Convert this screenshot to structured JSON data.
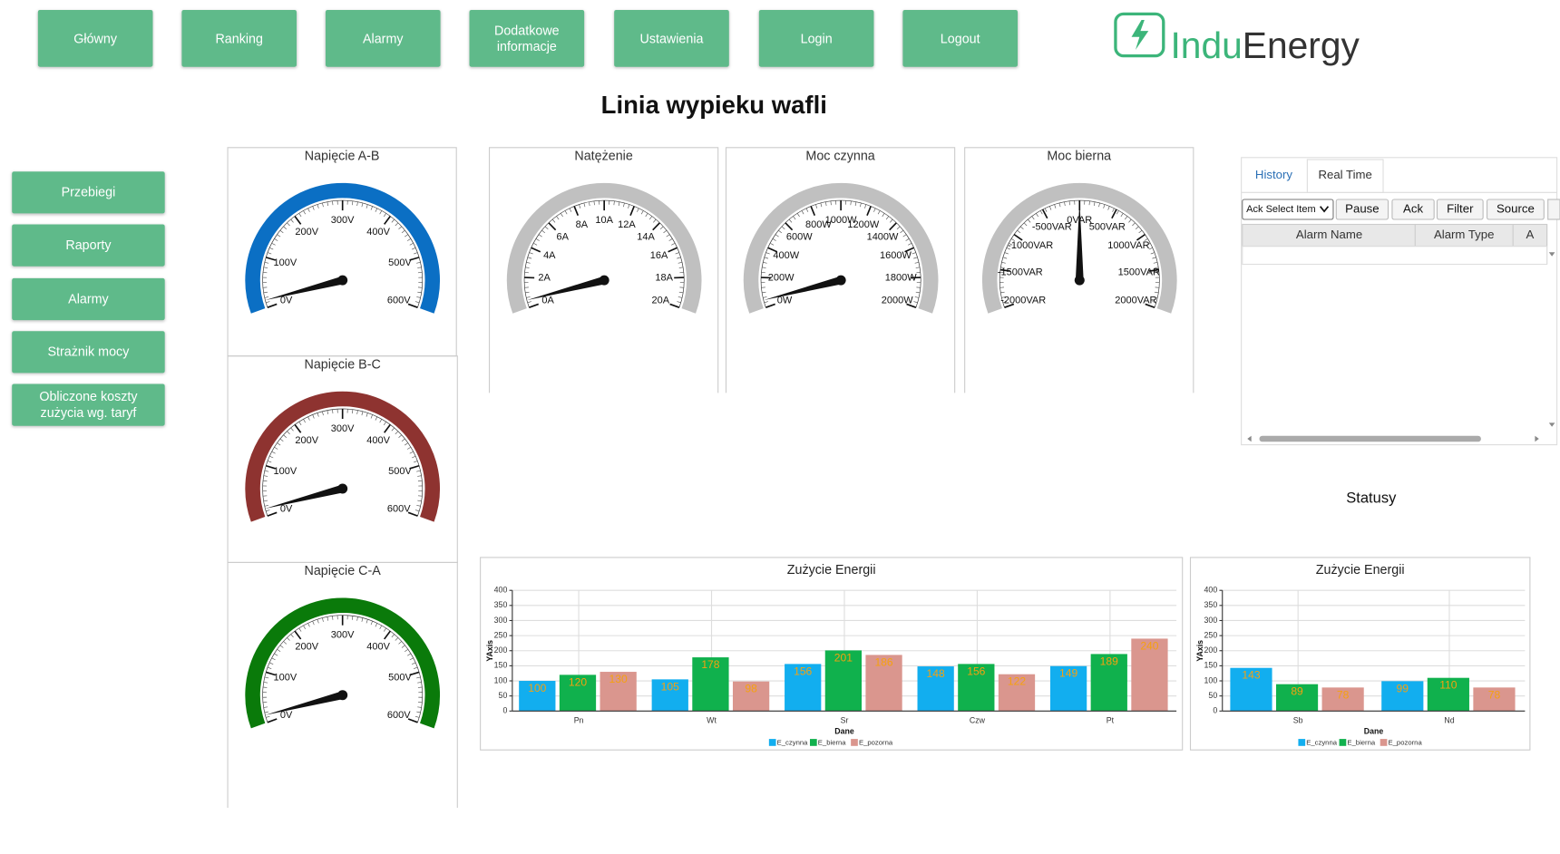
{
  "nav": {
    "buttons": [
      "Główny",
      "Ranking",
      "Alarmy",
      "Dodatkowe informacje",
      "Ustawienia",
      "Login",
      "Logout"
    ]
  },
  "logo": {
    "part1": "Indu",
    "part2": "Energy"
  },
  "title": "Linia wypieku wafli",
  "sidebar": {
    "buttons": [
      "Przebiegi",
      "Raporty",
      "Alarmy",
      "Strażnik mocy",
      "Obliczone koszty zużycia wg. taryf"
    ]
  },
  "gauges": [
    {
      "title": "Napięcie A-B",
      "lim": [
        0,
        600
      ],
      "value": 15,
      "color": "#0b6fc4",
      "ticks": [
        {
          "value": 0,
          "label": "0V"
        },
        {
          "value": 100,
          "label": "100V"
        },
        {
          "value": 200,
          "label": "200V"
        },
        {
          "value": 300,
          "label": "300V"
        },
        {
          "value": 400,
          "label": "400V"
        },
        {
          "value": 500,
          "label": "500V"
        },
        {
          "value": 600,
          "label": "600V"
        }
      ]
    },
    {
      "title": "Napięcie B-C",
      "lim": [
        0,
        600
      ],
      "value": 15,
      "color": "#8e3330",
      "ticks": [
        {
          "value": 0,
          "label": "0V"
        },
        {
          "value": 100,
          "label": "100V"
        },
        {
          "value": 200,
          "label": "200V"
        },
        {
          "value": 300,
          "label": "300V"
        },
        {
          "value": 400,
          "label": "400V"
        },
        {
          "value": 500,
          "label": "500V"
        },
        {
          "value": 600,
          "label": "600V"
        }
      ]
    },
    {
      "title": "Napięcie C-A",
      "lim": [
        0,
        600
      ],
      "value": 15,
      "color": "#0a7a0a",
      "ticks": [
        {
          "value": 0,
          "label": "0V"
        },
        {
          "value": 100,
          "label": "100V"
        },
        {
          "value": 200,
          "label": "200V"
        },
        {
          "value": 300,
          "label": "300V"
        },
        {
          "value": 400,
          "label": "400V"
        },
        {
          "value": 500,
          "label": "500V"
        },
        {
          "value": 600,
          "label": "600V"
        }
      ]
    },
    {
      "title": "Natężenie",
      "lim": [
        0,
        20
      ],
      "value": 0.5,
      "color": "#c0c0c0",
      "ticks": [
        {
          "value": 0,
          "label": "0A"
        },
        {
          "value": 2,
          "label": "2A"
        },
        {
          "value": 4,
          "label": "4A"
        },
        {
          "value": 6,
          "label": "6A"
        },
        {
          "value": 8,
          "label": "8A"
        },
        {
          "value": 10,
          "label": "10A"
        },
        {
          "value": 12,
          "label": "12A"
        },
        {
          "value": 14,
          "label": "14A"
        },
        {
          "value": 16,
          "label": "16A"
        },
        {
          "value": 18,
          "label": "18A"
        },
        {
          "value": 20,
          "label": "20A"
        }
      ]
    },
    {
      "title": "Moc czynna",
      "lim": [
        0,
        2000
      ],
      "value": 50,
      "color": "#c0c0c0",
      "ticks": [
        {
          "value": 0,
          "label": "0W"
        },
        {
          "value": 200,
          "label": "200W"
        },
        {
          "value": 400,
          "label": "400W"
        },
        {
          "value": 600,
          "label": "600W"
        },
        {
          "value": 800,
          "label": "800W"
        },
        {
          "value": 1000,
          "label": "1000W"
        },
        {
          "value": 1200,
          "label": "1200W"
        },
        {
          "value": 1400,
          "label": "1400W"
        },
        {
          "value": 1600,
          "label": "1600W"
        },
        {
          "value": 1800,
          "label": "1800W"
        },
        {
          "value": 2000,
          "label": "2000W"
        }
      ]
    },
    {
      "title": "Moc bierna",
      "lim": [
        -2000,
        2000
      ],
      "value": 0,
      "color": "#c0c0c0",
      "ticks": [
        {
          "value": -2000,
          "label": "-2000VAR"
        },
        {
          "value": -1500,
          "label": "-1500VAR"
        },
        {
          "value": -1000,
          "label": "-1000VAR"
        },
        {
          "value": -500,
          "label": "-500VAR"
        },
        {
          "value": 0,
          "label": "0VAR"
        },
        {
          "value": 500,
          "label": "500VAR"
        },
        {
          "value": 1000,
          "label": "1000VAR"
        },
        {
          "value": 1500,
          "label": "1500VAR"
        },
        {
          "value": 2000,
          "label": "2000VAR"
        }
      ]
    }
  ],
  "alarms": {
    "tabs": [
      "History",
      "Real Time"
    ],
    "select": "Ack Select Item",
    "buttons": [
      "Pause",
      "Ack",
      "Filter",
      "Source"
    ],
    "columns": [
      "Alarm Name",
      "Alarm Type",
      "A"
    ]
  },
  "statuses": {
    "title": "Statusy"
  },
  "charts": [
    {
      "type": "bar",
      "title": "Zużycie Energii",
      "xlabel": "Dane",
      "ylabel": "YAxis",
      "categories": [
        "Pn",
        "Wt",
        "Sr",
        "Czw",
        "Pt"
      ],
      "series": [
        {
          "name": "E_czynna",
          "color": "#12aeef",
          "values": [
            100,
            105,
            156,
            148,
            149
          ]
        },
        {
          "name": "E_bierna",
          "color": "#10b14d",
          "values": [
            120,
            178,
            201,
            156,
            189
          ]
        },
        {
          "name": "E_pozorna",
          "color": "#da968e",
          "values": [
            130,
            98,
            186,
            122,
            240
          ]
        }
      ],
      "ylim": [
        0,
        400
      ],
      "yticks": [
        0,
        50,
        100,
        150,
        200,
        250,
        300,
        350,
        400
      ],
      "grid": true
    },
    {
      "type": "bar",
      "title": "Zużycie Energii",
      "xlabel": "Dane",
      "ylabel": "YAxis",
      "categories": [
        "Sb",
        "Nd"
      ],
      "series": [
        {
          "name": "E_czynna",
          "color": "#12aeef",
          "values": [
            143,
            99
          ]
        },
        {
          "name": "E_bierna",
          "color": "#10b14d",
          "values": [
            89,
            110
          ]
        },
        {
          "name": "E_pozorna",
          "color": "#da968e",
          "values": [
            78,
            78
          ]
        }
      ],
      "ylim": [
        0,
        400
      ],
      "yticks": [
        0,
        50,
        100,
        150,
        200,
        250,
        300,
        350,
        400
      ],
      "grid": true
    }
  ]
}
